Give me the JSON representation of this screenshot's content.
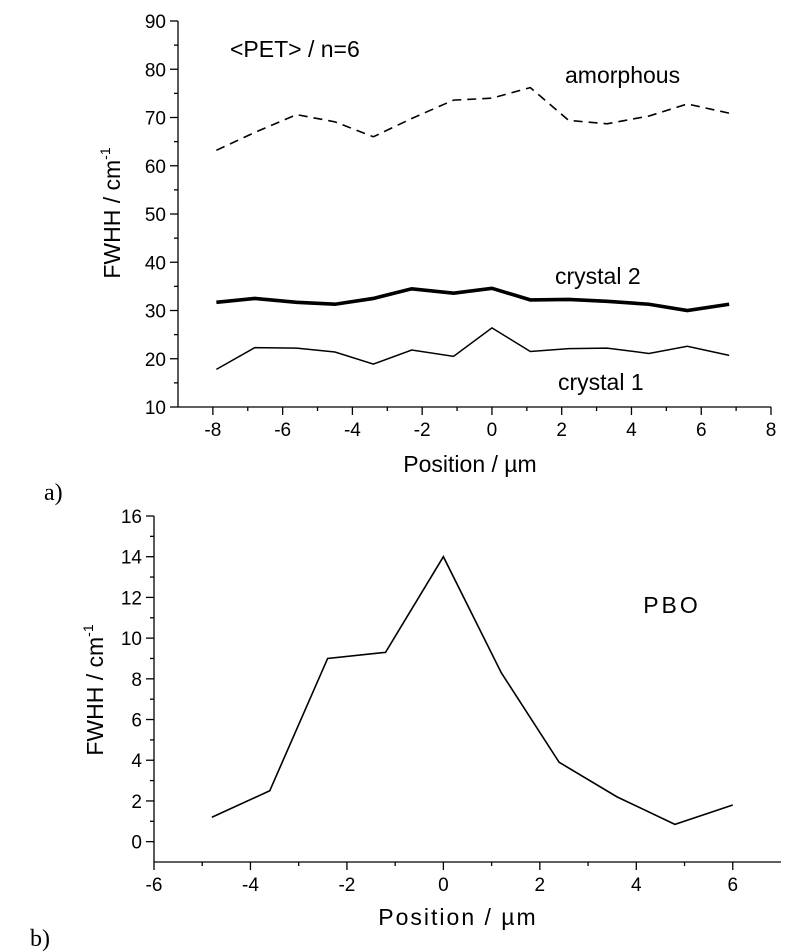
{
  "chart_data": [
    {
      "type": "line",
      "panel_label": "a)",
      "xlabel": "Position / µm",
      "ylabel": "FWHH  /  cm",
      "ylabel_superscript": "-1",
      "xlim": [
        -9,
        8
      ],
      "ylim": [
        10,
        90
      ],
      "x_ticks": [
        -8,
        -6,
        -4,
        -2,
        0,
        2,
        4,
        6,
        8
      ],
      "y_ticks": [
        10,
        20,
        30,
        40,
        50,
        60,
        70,
        80,
        90
      ],
      "x_tick_labels": [
        "-8",
        "-6",
        "-4",
        "-2",
        "0",
        "2",
        "4",
        "6",
        "8"
      ],
      "y_tick_labels": [
        "10",
        "20",
        "30",
        "40",
        "50",
        "60",
        "70",
        "80",
        "90"
      ],
      "annotation": "<PET> / n=6",
      "series": [
        {
          "name": "amorphous",
          "style": "dashed",
          "x": [
            -7.9,
            -6.8,
            -5.6,
            -4.5,
            -3.4,
            -2.3,
            -1.1,
            0.0,
            1.1,
            2.2,
            3.3,
            4.5,
            5.6,
            6.8
          ],
          "y": [
            63.2,
            66.9,
            70.6,
            69.1,
            66.0,
            69.8,
            73.6,
            74.0,
            76.2,
            69.4,
            68.7,
            70.3,
            72.8,
            70.9
          ]
        },
        {
          "name": "crystal 2",
          "style": "thick",
          "x": [
            -7.9,
            -6.8,
            -5.6,
            -4.5,
            -3.4,
            -2.3,
            -1.1,
            0.0,
            1.1,
            2.2,
            3.3,
            4.5,
            5.6,
            6.8
          ],
          "y": [
            31.7,
            32.5,
            31.7,
            31.3,
            32.5,
            34.5,
            33.6,
            34.6,
            32.2,
            32.3,
            31.9,
            31.3,
            30.0,
            31.3
          ]
        },
        {
          "name": "crystal 1",
          "style": "thin",
          "x": [
            -7.9,
            -6.8,
            -5.6,
            -4.5,
            -3.4,
            -2.3,
            -1.1,
            0.0,
            1.1,
            2.2,
            3.3,
            4.5,
            5.6,
            6.8
          ],
          "y": [
            17.8,
            22.3,
            22.2,
            21.4,
            18.9,
            21.8,
            20.5,
            26.4,
            21.5,
            22.1,
            22.2,
            21.1,
            22.6,
            20.7
          ]
        }
      ]
    },
    {
      "type": "line",
      "panel_label": "b)",
      "xlabel": "Position / µm",
      "ylabel": "FWHH / cm",
      "ylabel_superscript": "-1",
      "xlim": [
        -6,
        7
      ],
      "ylim": [
        -1,
        16
      ],
      "x_ticks": [
        -6,
        -4,
        -2,
        0,
        2,
        4,
        6
      ],
      "y_ticks": [
        0,
        2,
        4,
        6,
        8,
        10,
        12,
        14,
        16
      ],
      "x_tick_labels": [
        "-6",
        "-4",
        "-2",
        "0",
        "2",
        "4",
        "6"
      ],
      "y_tick_labels": [
        "0",
        "2",
        "4",
        "6",
        "8",
        "10",
        "12",
        "14",
        "16"
      ],
      "annotation": "PBO",
      "series": [
        {
          "name": "",
          "style": "thin",
          "x": [
            -4.8,
            -3.6,
            -2.4,
            -1.2,
            0.0,
            1.2,
            2.4,
            3.6,
            4.8,
            6.0
          ],
          "y": [
            1.2,
            2.5,
            9.0,
            9.3,
            14.0,
            8.3,
            3.9,
            2.2,
            0.85,
            1.8
          ]
        }
      ]
    }
  ]
}
